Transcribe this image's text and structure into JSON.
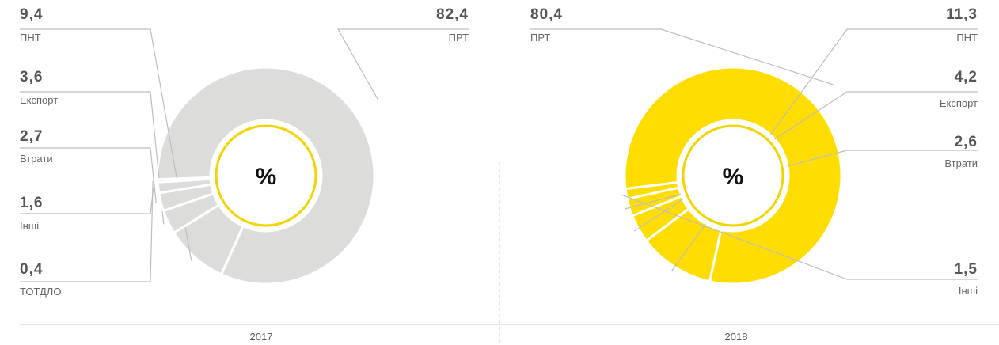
{
  "chart_data": [
    {
      "type": "pie",
      "year": "2017",
      "center_label": "%",
      "fill_color": "#dcdcda",
      "ring_color": "#f2d400",
      "slices": [
        {
          "label": "ПРТ",
          "value": 82.4,
          "value_text": "82,4"
        },
        {
          "label": "ПНТ",
          "value": 9.4,
          "value_text": "9,4"
        },
        {
          "label": "Експорт",
          "value": 3.6,
          "value_text": "3,6"
        },
        {
          "label": "Втрати",
          "value": 2.7,
          "value_text": "2,7"
        },
        {
          "label": "Інші",
          "value": 1.6,
          "value_text": "1,6"
        },
        {
          "label": "ТОТДЛО",
          "value": 0.4,
          "value_text": "0,4"
        }
      ]
    },
    {
      "type": "pie",
      "year": "2018",
      "center_label": "%",
      "fill_color": "#ffdd00",
      "ring_color": "#f2d400",
      "slices": [
        {
          "label": "ПРТ",
          "value": 80.4,
          "value_text": "80,4"
        },
        {
          "label": "ПНТ",
          "value": 11.3,
          "value_text": "11,3"
        },
        {
          "label": "Експорт",
          "value": 4.2,
          "value_text": "4,2"
        },
        {
          "label": "Втрати",
          "value": 2.6,
          "value_text": "2,6"
        },
        {
          "label": "Інші",
          "value": 1.5,
          "value_text": "1,5"
        }
      ]
    }
  ]
}
